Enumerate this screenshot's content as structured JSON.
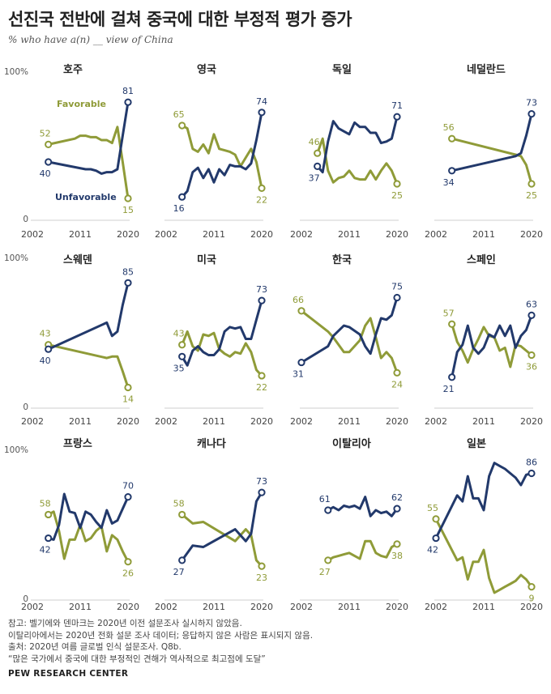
{
  "title": "선진국 전반에 걸쳐 중국에 대한 부정적 평가 증가",
  "subtitle": "% who have a(n) __ view of China",
  "colors": {
    "favorable": "#8f9b38",
    "unfavorable": "#22396b"
  },
  "chart_data": [
    {
      "type": "line",
      "title": "호주",
      "x_ticks": [
        "2002",
        "2011",
        "2020"
      ],
      "y_ticks": [
        "100%",
        "0"
      ],
      "ylim": [
        0,
        100
      ],
      "legend": [
        "Favorable",
        "Unfavorable"
      ],
      "series": [
        {
          "name": "Favorable",
          "x": [
            2005,
            2010,
            2011,
            2012,
            2013,
            2014,
            2015,
            2016,
            2017,
            2018,
            2019,
            2020
          ],
          "values": [
            52,
            56,
            58,
            58,
            57,
            57,
            55,
            55,
            53,
            64,
            40,
            15
          ],
          "labels": [
            "52",
            "15"
          ]
        },
        {
          "name": "Unfavorable",
          "x": [
            2005,
            2012,
            2013,
            2014,
            2015,
            2016,
            2017,
            2018,
            2019,
            2020
          ],
          "values": [
            40,
            35,
            35,
            34,
            32,
            33,
            33,
            35,
            58,
            81
          ],
          "labels": [
            "40",
            "81"
          ]
        }
      ]
    },
    {
      "type": "line",
      "title": "영국",
      "x_ticks": [
        "2002",
        "2011",
        "2020"
      ],
      "y_ticks": [],
      "ylim": [
        0,
        100
      ],
      "series": [
        {
          "name": "Favorable",
          "x": [
            2005,
            2006,
            2007,
            2008,
            2009,
            2010,
            2011,
            2012,
            2013,
            2014,
            2015,
            2016,
            2017,
            2018,
            2019,
            2020
          ],
          "values": [
            65,
            63,
            49,
            47,
            52,
            46,
            59,
            49,
            48,
            47,
            45,
            37,
            43,
            49,
            40,
            22
          ],
          "labels": [
            "65",
            "22"
          ]
        },
        {
          "name": "Unfavorable",
          "x": [
            2005,
            2006,
            2007,
            2008,
            2009,
            2010,
            2011,
            2012,
            2013,
            2014,
            2015,
            2016,
            2017,
            2018,
            2019,
            2020
          ],
          "values": [
            16,
            20,
            33,
            36,
            29,
            35,
            26,
            35,
            31,
            38,
            37,
            37,
            35,
            39,
            55,
            74
          ],
          "labels": [
            "16",
            "74"
          ]
        }
      ]
    },
    {
      "type": "line",
      "title": "독일",
      "x_ticks": [
        "2002",
        "2011",
        "2020"
      ],
      "y_ticks": [],
      "ylim": [
        0,
        100
      ],
      "series": [
        {
          "name": "Favorable",
          "x": [
            2005,
            2006,
            2007,
            2008,
            2009,
            2010,
            2011,
            2012,
            2013,
            2014,
            2015,
            2016,
            2017,
            2018,
            2019,
            2020
          ],
          "values": [
            46,
            56,
            34,
            26,
            29,
            30,
            34,
            29,
            28,
            28,
            34,
            28,
            34,
            39,
            34,
            25
          ],
          "labels": [
            "46",
            "25"
          ]
        },
        {
          "name": "Unfavorable",
          "x": [
            2005,
            2006,
            2007,
            2008,
            2009,
            2010,
            2011,
            2012,
            2013,
            2014,
            2015,
            2016,
            2017,
            2018,
            2019,
            2020
          ],
          "values": [
            37,
            33,
            54,
            68,
            63,
            61,
            59,
            67,
            64,
            64,
            60,
            60,
            53,
            54,
            56,
            71
          ],
          "labels": [
            "37",
            "71"
          ]
        }
      ]
    },
    {
      "type": "line",
      "title": "네덜란드",
      "x_ticks": [
        "2002",
        "2011",
        "2020"
      ],
      "y_ticks": [],
      "ylim": [
        0,
        100
      ],
      "series": [
        {
          "name": "Favorable",
          "x": [
            2005,
            2017,
            2018,
            2019,
            2020
          ],
          "values": [
            56,
            45,
            44,
            38,
            25
          ],
          "labels": [
            "56",
            "25"
          ]
        },
        {
          "name": "Unfavorable",
          "x": [
            2005,
            2017,
            2018,
            2019,
            2020
          ],
          "values": [
            34,
            44,
            46,
            58,
            73
          ],
          "labels": [
            "34",
            "73"
          ]
        }
      ]
    },
    {
      "type": "line",
      "title": "스웨덴",
      "x_ticks": [
        "2002",
        "2011",
        "2020"
      ],
      "y_ticks": [
        "100%",
        "0"
      ],
      "ylim": [
        0,
        100
      ],
      "series": [
        {
          "name": "Favorable",
          "x": [
            2005,
            2016,
            2017,
            2018,
            2019,
            2020
          ],
          "values": [
            43,
            34,
            35,
            35,
            25,
            14
          ],
          "labels": [
            "43",
            "14"
          ]
        },
        {
          "name": "Unfavorable",
          "x": [
            2005,
            2016,
            2017,
            2018,
            2019,
            2020
          ],
          "values": [
            40,
            58,
            49,
            52,
            70,
            85
          ],
          "labels": [
            "40",
            "85"
          ]
        }
      ]
    },
    {
      "type": "line",
      "title": "미국",
      "x_ticks": [
        "2002",
        "2011",
        "2020"
      ],
      "y_ticks": [],
      "ylim": [
        0,
        100
      ],
      "series": [
        {
          "name": "Favorable",
          "x": [
            2005,
            2006,
            2007,
            2008,
            2009,
            2010,
            2011,
            2012,
            2013,
            2014,
            2015,
            2016,
            2017,
            2018,
            2019,
            2020
          ],
          "values": [
            43,
            52,
            42,
            39,
            50,
            49,
            51,
            40,
            37,
            35,
            38,
            37,
            44,
            38,
            26,
            22
          ],
          "labels": [
            "43",
            "22"
          ]
        },
        {
          "name": "Unfavorable",
          "x": [
            2005,
            2006,
            2007,
            2008,
            2009,
            2010,
            2011,
            2012,
            2013,
            2014,
            2015,
            2016,
            2017,
            2018,
            2019,
            2020
          ],
          "values": [
            35,
            29,
            39,
            42,
            38,
            36,
            36,
            40,
            52,
            55,
            54,
            55,
            47,
            47,
            60,
            73
          ],
          "labels": [
            "35",
            "73"
          ]
        }
      ]
    },
    {
      "type": "line",
      "title": "한국",
      "x_ticks": [
        "2002",
        "2011",
        "2020"
      ],
      "y_ticks": [],
      "ylim": [
        0,
        100
      ],
      "series": [
        {
          "name": "Favorable",
          "x": [
            2002,
            2007,
            2008,
            2010,
            2011,
            2013,
            2014,
            2015,
            2016,
            2017,
            2018,
            2019,
            2020
          ],
          "values": [
            66,
            52,
            48,
            38,
            38,
            46,
            56,
            61,
            48,
            34,
            38,
            34,
            24
          ],
          "labels": [
            "66",
            "24"
          ]
        },
        {
          "name": "Unfavorable",
          "x": [
            2002,
            2007,
            2008,
            2010,
            2011,
            2013,
            2014,
            2015,
            2016,
            2017,
            2018,
            2019,
            2020
          ],
          "values": [
            31,
            42,
            49,
            56,
            55,
            50,
            42,
            37,
            50,
            61,
            60,
            63,
            75
          ],
          "labels": [
            "31",
            "75"
          ]
        }
      ]
    },
    {
      "type": "line",
      "title": "스페인",
      "x_ticks": [
        "2002",
        "2011",
        "2020"
      ],
      "y_ticks": [],
      "ylim": [
        0,
        100
      ],
      "series": [
        {
          "name": "Favorable",
          "x": [
            2005,
            2006,
            2007,
            2008,
            2009,
            2010,
            2011,
            2012,
            2013,
            2014,
            2015,
            2016,
            2017,
            2018,
            2019,
            2020
          ],
          "values": [
            57,
            45,
            39,
            31,
            40,
            47,
            55,
            49,
            48,
            39,
            41,
            28,
            43,
            42,
            39,
            36
          ],
          "labels": [
            "57",
            "36"
          ]
        },
        {
          "name": "Unfavorable",
          "x": [
            2005,
            2006,
            2007,
            2008,
            2009,
            2010,
            2011,
            2012,
            2013,
            2014,
            2015,
            2016,
            2017,
            2018,
            2019,
            2020
          ],
          "values": [
            21,
            38,
            43,
            56,
            41,
            37,
            41,
            50,
            48,
            56,
            49,
            56,
            41,
            49,
            53,
            63
          ],
          "labels": [
            "21",
            "63"
          ]
        }
      ]
    },
    {
      "type": "line",
      "title": "프랑스",
      "x_ticks": [
        "2002",
        "2011",
        "2020"
      ],
      "y_ticks": [
        "100%",
        "0"
      ],
      "ylim": [
        0,
        100
      ],
      "series": [
        {
          "name": "Favorable",
          "x": [
            2005,
            2006,
            2007,
            2008,
            2009,
            2010,
            2011,
            2012,
            2013,
            2014,
            2015,
            2016,
            2017,
            2018,
            2019,
            2020
          ],
          "values": [
            58,
            60,
            47,
            28,
            41,
            41,
            51,
            40,
            42,
            47,
            50,
            33,
            44,
            41,
            33,
            26
          ],
          "labels": [
            "58",
            "26"
          ]
        },
        {
          "name": "Unfavorable",
          "x": [
            2005,
            2006,
            2007,
            2008,
            2009,
            2010,
            2011,
            2012,
            2013,
            2014,
            2015,
            2016,
            2017,
            2018,
            2019,
            2020
          ],
          "values": [
            42,
            41,
            51,
            72,
            60,
            59,
            49,
            60,
            58,
            53,
            49,
            61,
            52,
            54,
            62,
            70
          ],
          "labels": [
            "42",
            "70"
          ]
        }
      ]
    },
    {
      "type": "line",
      "title": "캐나다",
      "x_ticks": [
        "2002",
        "2011",
        "2020"
      ],
      "y_ticks": [],
      "ylim": [
        0,
        100
      ],
      "series": [
        {
          "name": "Favorable",
          "x": [
            2005,
            2007,
            2009,
            2015,
            2017,
            2018,
            2019,
            2020
          ],
          "values": [
            58,
            52,
            53,
            40,
            48,
            44,
            27,
            23
          ],
          "labels": [
            "58",
            "23"
          ]
        },
        {
          "name": "Unfavorable",
          "x": [
            2005,
            2007,
            2009,
            2015,
            2017,
            2018,
            2019,
            2020
          ],
          "values": [
            27,
            37,
            36,
            48,
            40,
            45,
            67,
            73
          ],
          "labels": [
            "27",
            "73"
          ]
        }
      ]
    },
    {
      "type": "line",
      "title": "이탈리아",
      "x_ticks": [
        "2002",
        "2011",
        "2020"
      ],
      "y_ticks": [],
      "ylim": [
        0,
        100
      ],
      "series": [
        {
          "name": "Favorable",
          "x": [
            2007,
            2008,
            2009,
            2010,
            2011,
            2012,
            2013,
            2014,
            2015,
            2016,
            2017,
            2018,
            2019,
            2020
          ],
          "values": [
            27,
            29,
            30,
            31,
            32,
            30,
            28,
            40,
            40,
            32,
            30,
            29,
            36,
            38
          ],
          "labels": [
            "27",
            "38"
          ]
        },
        {
          "name": "Unfavorable",
          "x": [
            2007,
            2008,
            2009,
            2010,
            2011,
            2012,
            2013,
            2014,
            2015,
            2016,
            2017,
            2018,
            2019,
            2020
          ],
          "values": [
            61,
            63,
            61,
            64,
            63,
            64,
            62,
            70,
            57,
            61,
            59,
            60,
            57,
            62
          ],
          "labels": [
            "61",
            "62"
          ]
        }
      ]
    },
    {
      "type": "line",
      "title": "일본",
      "x_ticks": [
        "2002",
        "2011",
        "2020"
      ],
      "y_ticks": [],
      "ylim": [
        0,
        100
      ],
      "series": [
        {
          "name": "Favorable",
          "x": [
            2002,
            2006,
            2007,
            2008,
            2009,
            2010,
            2011,
            2012,
            2013,
            2014,
            2015,
            2016,
            2017,
            2018,
            2019,
            2020
          ],
          "values": [
            55,
            27,
            29,
            14,
            26,
            26,
            34,
            15,
            5,
            7,
            9,
            11,
            13,
            17,
            14,
            9
          ],
          "labels": [
            "55",
            "9"
          ]
        },
        {
          "name": "Unfavorable",
          "x": [
            2002,
            2006,
            2007,
            2008,
            2009,
            2010,
            2011,
            2012,
            2013,
            2014,
            2015,
            2016,
            2017,
            2018,
            2019,
            2020
          ],
          "values": [
            42,
            71,
            67,
            84,
            69,
            69,
            61,
            84,
            93,
            91,
            89,
            86,
            83,
            78,
            85,
            86
          ],
          "labels": [
            "42",
            "86"
          ]
        }
      ]
    }
  ],
  "notes": [
    "참고: 벨기에와 덴마크는 2020년 이전 설문조사 실시하지 않았음.",
    "이탈리아에서는 2020년 전화 설문 조사 데이터; 응답하지 않은 사람은 표시되지 않음.",
    "출처: 2020년 여름 글로벌 인식 설문조사. Q8b.",
    "“많은 국가에서 중국에 대한 부정적인 견해가 역사적으로 최고점에 도달”"
  ],
  "brand": "PEW RESEARCH CENTER"
}
